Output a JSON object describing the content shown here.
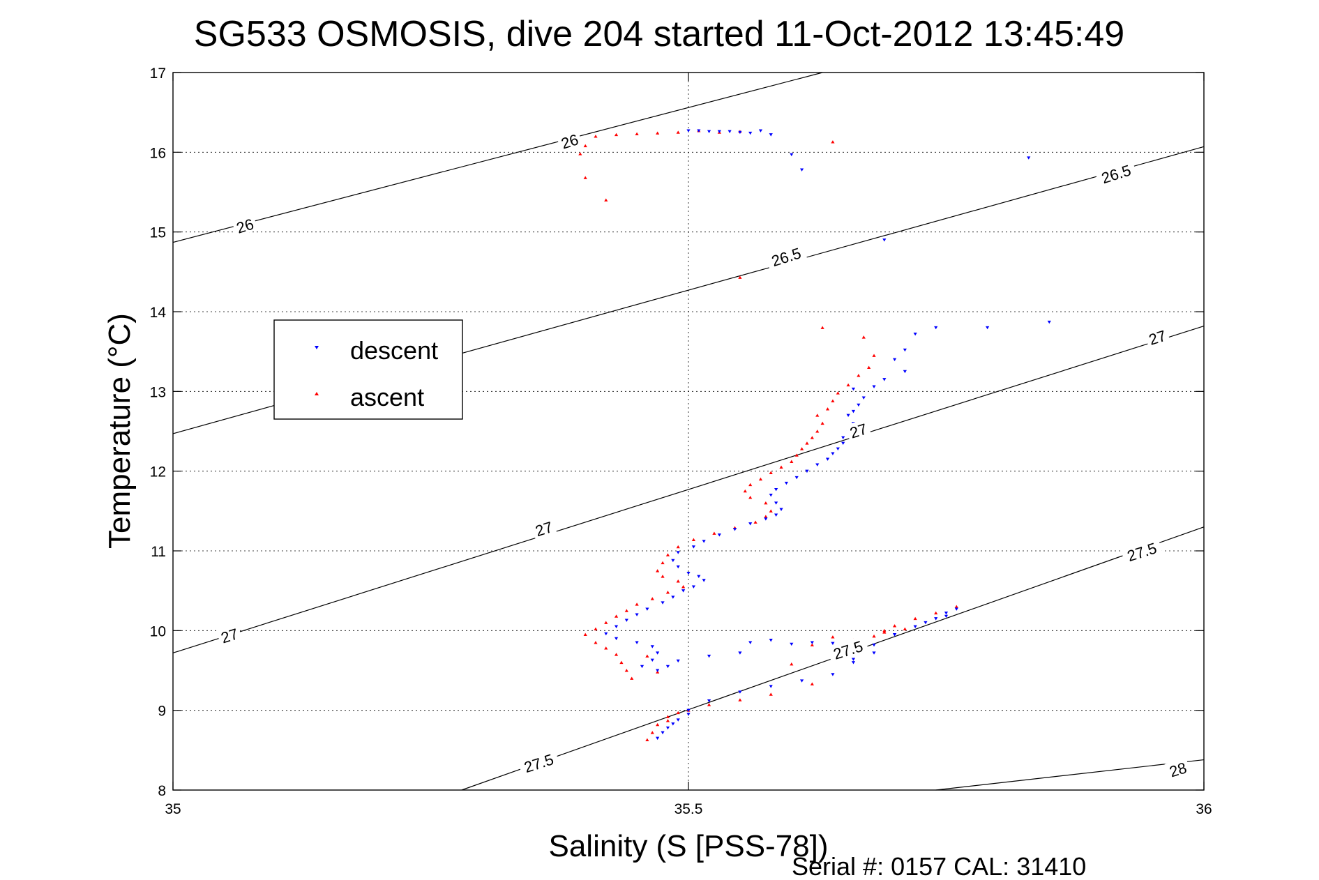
{
  "chart_data": {
    "type": "scatter",
    "title": "SG533 OSMOSIS, dive 204 started 11-Oct-2012 13:45:49",
    "xlabel": "Salinity (S [PSS-78])",
    "ylabel": "Temperature (°C)",
    "xlim": [
      35,
      36
    ],
    "ylim": [
      8,
      17
    ],
    "xticks": [
      "35",
      "35.5",
      "36"
    ],
    "yticks": [
      "8",
      "9",
      "10",
      "11",
      "12",
      "13",
      "14",
      "15",
      "16",
      "17"
    ],
    "grid": true,
    "legend_position": "upper-left",
    "footnote": "Serial #: 0157  CAL: 31410",
    "contours": [
      {
        "level": "26",
        "x": [
          35.0,
          35.63
        ],
        "y": [
          14.87,
          17.0
        ]
      },
      {
        "level": "26.5",
        "x": [
          35.0,
          36.0
        ],
        "y": [
          12.47,
          16.07
        ]
      },
      {
        "level": "27",
        "x": [
          35.0,
          36.0
        ],
        "y": [
          9.72,
          13.82
        ]
      },
      {
        "level": "27.5",
        "x": [
          35.28,
          36.0
        ],
        "y": [
          8.0,
          11.3
        ]
      },
      {
        "level": "28",
        "x": [
          35.74,
          36.0
        ],
        "y": [
          8.0,
          8.38
        ]
      }
    ],
    "contour_labels": [
      {
        "text": "26",
        "x": 35.07,
        "y": 15.07
      },
      {
        "text": "26",
        "x": 35.385,
        "y": 16.13
      },
      {
        "text": "26.5",
        "x": 35.595,
        "y": 14.68
      },
      {
        "text": "26.5",
        "x": 35.915,
        "y": 15.72
      },
      {
        "text": "27",
        "x": 35.055,
        "y": 9.93
      },
      {
        "text": "27",
        "x": 35.36,
        "y": 11.27
      },
      {
        "text": "27",
        "x": 35.665,
        "y": 12.5
      },
      {
        "text": "27",
        "x": 35.955,
        "y": 13.67
      },
      {
        "text": "27.5",
        "x": 35.355,
        "y": 8.33
      },
      {
        "text": "27.5",
        "x": 35.655,
        "y": 9.75
      },
      {
        "text": "27.5",
        "x": 35.94,
        "y": 10.98
      },
      {
        "text": "28",
        "x": 35.975,
        "y": 8.25
      }
    ],
    "series": [
      {
        "name": "descent",
        "color": "#0000ff",
        "marker": "triangle-down",
        "points": [
          [
            35.5,
            16.27
          ],
          [
            35.51,
            16.27
          ],
          [
            35.52,
            16.26
          ],
          [
            35.53,
            16.26
          ],
          [
            35.54,
            16.26
          ],
          [
            35.55,
            16.25
          ],
          [
            35.56,
            16.24
          ],
          [
            35.57,
            16.27
          ],
          [
            35.58,
            16.22
          ],
          [
            35.6,
            15.97
          ],
          [
            35.61,
            15.78
          ],
          [
            35.83,
            15.93
          ],
          [
            35.69,
            14.9
          ],
          [
            35.85,
            13.87
          ],
          [
            35.79,
            13.8
          ],
          [
            35.74,
            13.8
          ],
          [
            35.72,
            13.72
          ],
          [
            35.71,
            13.52
          ],
          [
            35.7,
            13.4
          ],
          [
            35.71,
            13.25
          ],
          [
            35.69,
            13.15
          ],
          [
            35.68,
            13.06
          ],
          [
            35.66,
            13.03
          ],
          [
            35.67,
            12.92
          ],
          [
            35.665,
            12.83
          ],
          [
            35.66,
            12.75
          ],
          [
            35.655,
            12.7
          ],
          [
            35.66,
            12.6
          ],
          [
            35.655,
            12.5
          ],
          [
            35.65,
            12.42
          ],
          [
            35.65,
            12.35
          ],
          [
            35.645,
            12.28
          ],
          [
            35.64,
            12.22
          ],
          [
            35.635,
            12.15
          ],
          [
            35.625,
            12.08
          ],
          [
            35.615,
            12.0
          ],
          [
            35.605,
            11.92
          ],
          [
            35.595,
            11.85
          ],
          [
            35.585,
            11.77
          ],
          [
            35.58,
            11.7
          ],
          [
            35.585,
            11.6
          ],
          [
            35.59,
            11.52
          ],
          [
            35.585,
            11.45
          ],
          [
            35.575,
            11.4
          ],
          [
            35.56,
            11.34
          ],
          [
            35.545,
            11.27
          ],
          [
            35.53,
            11.2
          ],
          [
            35.515,
            11.12
          ],
          [
            35.505,
            11.05
          ],
          [
            35.49,
            10.98
          ],
          [
            35.485,
            10.88
          ],
          [
            35.49,
            10.8
          ],
          [
            35.5,
            10.72
          ],
          [
            35.51,
            10.68
          ],
          [
            35.515,
            10.63
          ],
          [
            35.505,
            10.55
          ],
          [
            35.495,
            10.5
          ],
          [
            35.485,
            10.42
          ],
          [
            35.475,
            10.35
          ],
          [
            35.46,
            10.27
          ],
          [
            35.45,
            10.2
          ],
          [
            35.44,
            10.13
          ],
          [
            35.43,
            10.05
          ],
          [
            35.42,
            9.96
          ],
          [
            35.43,
            9.9
          ],
          [
            35.45,
            9.85
          ],
          [
            35.465,
            9.8
          ],
          [
            35.47,
            9.72
          ],
          [
            35.465,
            9.63
          ],
          [
            35.455,
            9.55
          ],
          [
            35.47,
            9.5
          ],
          [
            35.48,
            9.55
          ],
          [
            35.49,
            9.62
          ],
          [
            35.52,
            9.68
          ],
          [
            35.55,
            9.72
          ],
          [
            35.56,
            9.85
          ],
          [
            35.58,
            9.88
          ],
          [
            35.6,
            9.83
          ],
          [
            35.62,
            9.85
          ],
          [
            35.64,
            9.84
          ],
          [
            35.66,
            9.64
          ],
          [
            35.68,
            9.72
          ],
          [
            35.7,
            9.95
          ],
          [
            35.72,
            10.05
          ],
          [
            35.74,
            10.15
          ],
          [
            35.75,
            10.22
          ],
          [
            35.76,
            10.27
          ],
          [
            35.75,
            10.18
          ],
          [
            35.73,
            10.1
          ],
          [
            35.7,
            9.95
          ],
          [
            35.68,
            9.82
          ],
          [
            35.66,
            9.6
          ],
          [
            35.64,
            9.45
          ],
          [
            35.61,
            9.37
          ],
          [
            35.58,
            9.3
          ],
          [
            35.55,
            9.23
          ],
          [
            35.52,
            9.12
          ],
          [
            35.5,
            9.0
          ],
          [
            35.49,
            8.88
          ],
          [
            35.48,
            8.78
          ],
          [
            35.47,
            8.65
          ],
          [
            35.475,
            8.72
          ],
          [
            35.485,
            8.83
          ],
          [
            35.5,
            8.95
          ]
        ]
      },
      {
        "name": "ascent",
        "color": "#ff0000",
        "marker": "triangle-up",
        "points": [
          [
            35.39,
            16.17
          ],
          [
            35.4,
            16.08
          ],
          [
            35.41,
            16.2
          ],
          [
            35.43,
            16.22
          ],
          [
            35.45,
            16.23
          ],
          [
            35.47,
            16.24
          ],
          [
            35.49,
            16.25
          ],
          [
            35.51,
            16.27
          ],
          [
            35.53,
            16.25
          ],
          [
            35.55,
            16.26
          ],
          [
            35.395,
            15.98
          ],
          [
            35.4,
            15.68
          ],
          [
            35.42,
            15.4
          ],
          [
            35.64,
            16.13
          ],
          [
            35.55,
            14.43
          ],
          [
            35.63,
            13.8
          ],
          [
            35.67,
            13.68
          ],
          [
            35.68,
            13.45
          ],
          [
            35.675,
            13.3
          ],
          [
            35.665,
            13.2
          ],
          [
            35.655,
            13.08
          ],
          [
            35.645,
            12.98
          ],
          [
            35.64,
            12.88
          ],
          [
            35.635,
            12.78
          ],
          [
            35.625,
            12.7
          ],
          [
            35.63,
            12.6
          ],
          [
            35.625,
            12.5
          ],
          [
            35.62,
            12.42
          ],
          [
            35.615,
            12.35
          ],
          [
            35.61,
            12.28
          ],
          [
            35.605,
            12.2
          ],
          [
            35.6,
            12.12
          ],
          [
            35.59,
            12.05
          ],
          [
            35.58,
            11.98
          ],
          [
            35.57,
            11.9
          ],
          [
            35.56,
            11.83
          ],
          [
            35.555,
            11.75
          ],
          [
            35.56,
            11.67
          ],
          [
            35.575,
            11.6
          ],
          [
            35.58,
            11.5
          ],
          [
            35.575,
            11.43
          ],
          [
            35.565,
            11.36
          ],
          [
            35.545,
            11.29
          ],
          [
            35.525,
            11.22
          ],
          [
            35.505,
            11.14
          ],
          [
            35.49,
            11.05
          ],
          [
            35.48,
            10.95
          ],
          [
            35.475,
            10.85
          ],
          [
            35.47,
            10.75
          ],
          [
            35.475,
            10.68
          ],
          [
            35.49,
            10.62
          ],
          [
            35.495,
            10.55
          ],
          [
            35.48,
            10.48
          ],
          [
            35.465,
            10.4
          ],
          [
            35.45,
            10.33
          ],
          [
            35.44,
            10.25
          ],
          [
            35.43,
            10.18
          ],
          [
            35.42,
            10.1
          ],
          [
            35.41,
            10.02
          ],
          [
            35.4,
            9.95
          ],
          [
            35.41,
            9.85
          ],
          [
            35.42,
            9.78
          ],
          [
            35.43,
            9.7
          ],
          [
            35.435,
            9.6
          ],
          [
            35.44,
            9.5
          ],
          [
            35.445,
            9.4
          ],
          [
            35.47,
            9.48
          ],
          [
            35.46,
            9.68
          ],
          [
            35.6,
            9.58
          ],
          [
            35.62,
            9.82
          ],
          [
            35.64,
            9.92
          ],
          [
            35.66,
            9.88
          ],
          [
            35.68,
            9.93
          ],
          [
            35.69,
            10.0
          ],
          [
            35.7,
            10.06
          ],
          [
            35.72,
            10.15
          ],
          [
            35.74,
            10.22
          ],
          [
            35.76,
            10.3
          ],
          [
            35.71,
            10.02
          ],
          [
            35.69,
            9.98
          ],
          [
            35.67,
            9.8
          ],
          [
            35.62,
            9.33
          ],
          [
            35.58,
            9.2
          ],
          [
            35.55,
            9.13
          ],
          [
            35.52,
            9.07
          ],
          [
            35.5,
            9.0
          ],
          [
            35.48,
            8.92
          ],
          [
            35.47,
            8.82
          ],
          [
            35.465,
            8.72
          ],
          [
            35.46,
            8.63
          ],
          [
            35.48,
            8.87
          ],
          [
            35.49,
            8.97
          ]
        ]
      }
    ]
  }
}
